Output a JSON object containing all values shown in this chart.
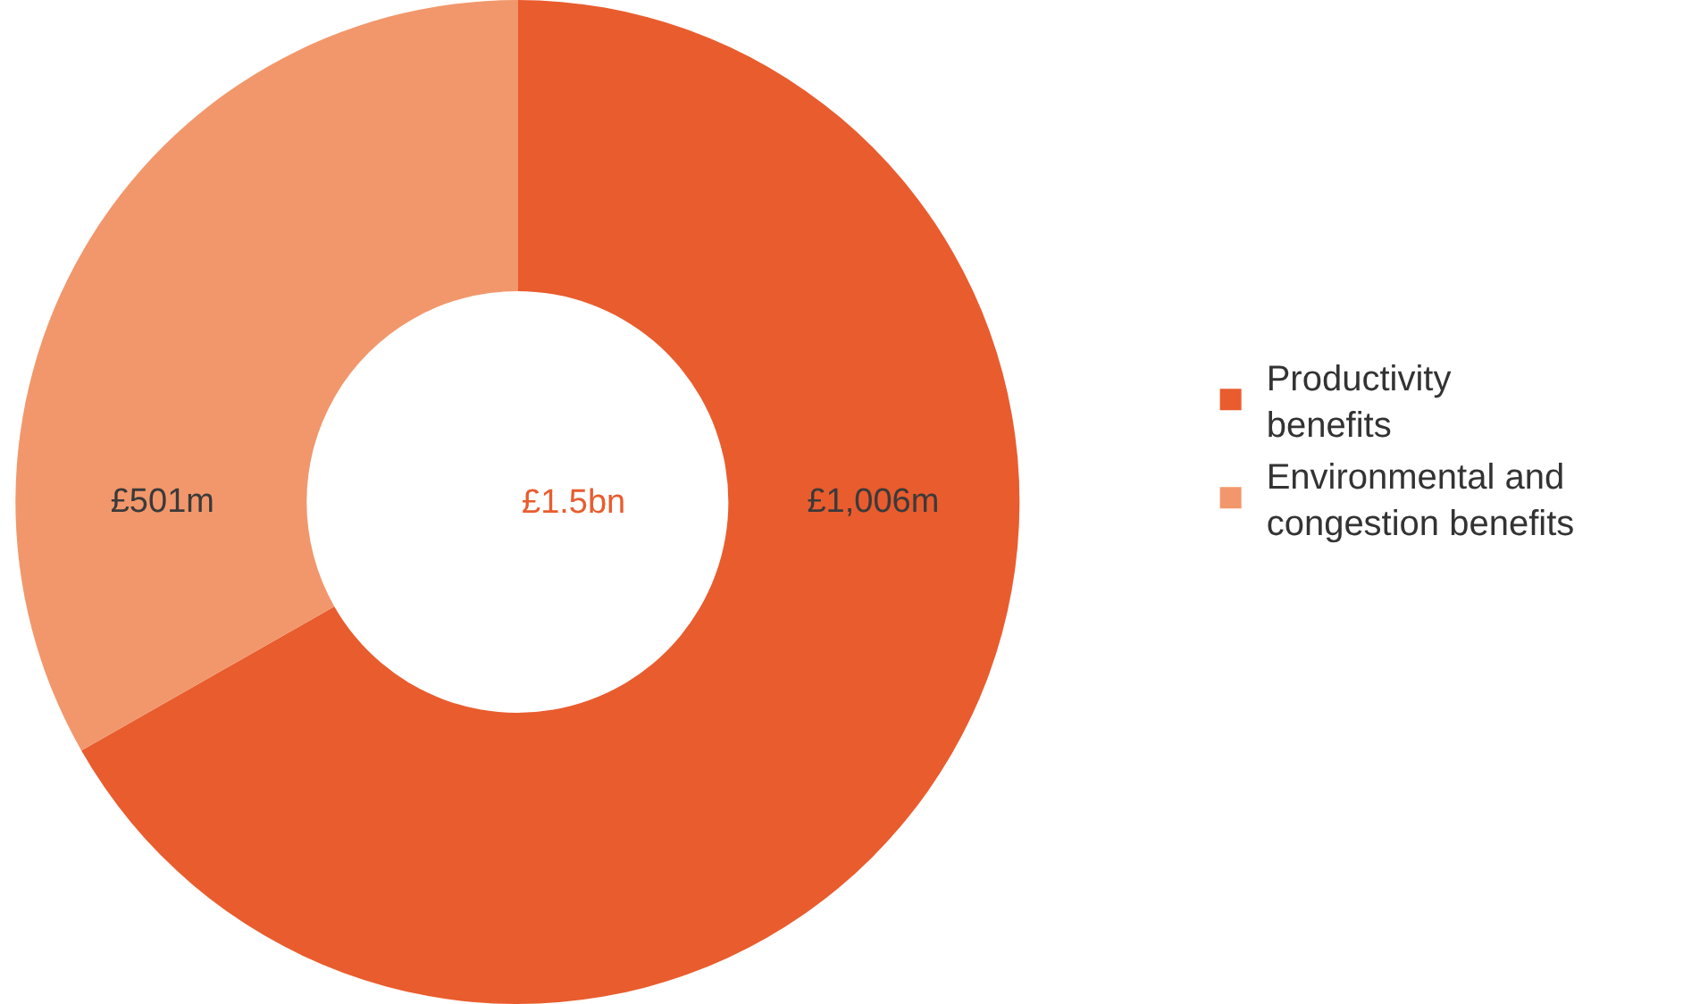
{
  "chart_data": {
    "type": "donut",
    "categories": [
      "Productivity benefits",
      "Environmental and congestion benefits"
    ],
    "values": [
      1006,
      501
    ],
    "colors": [
      "#e95c2e",
      "#f2976b"
    ],
    "value_labels": [
      "£1,006m",
      "£501m"
    ],
    "annotations": [
      "£1.5bn"
    ],
    "legend": "right"
  }
}
